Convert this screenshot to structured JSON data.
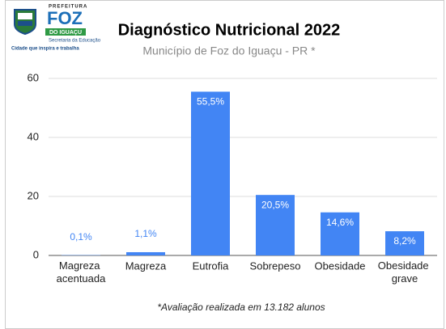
{
  "logo": {
    "top": "PREFEITURA",
    "name": "FOZ",
    "city": "DO IGUAÇU",
    "department": "Secretaria da Educação",
    "slogan": "Cidade que inspira e trabalha"
  },
  "chart_data": {
    "type": "bar",
    "title": "Diagnóstico Nutricional 2022",
    "subtitle": "Município de Foz do Iguaçu - PR *",
    "categories": [
      "Magreza acentuada",
      "Magreza",
      "Eutrofia",
      "Sobrepeso",
      "Obesidade",
      "Obesidade grave"
    ],
    "values": [
      0.1,
      1.1,
      55.5,
      20.5,
      14.6,
      8.2
    ],
    "value_labels": [
      "0,1%",
      "1,1%",
      "55,5%",
      "20,5%",
      "14,6%",
      "8,2%"
    ],
    "color": "#4285f4",
    "ylim": [
      0,
      60
    ],
    "yticks": [
      0,
      20,
      40,
      60
    ],
    "grid": true,
    "footnote": "*Avaliação realizada em 13.182 alunos"
  }
}
